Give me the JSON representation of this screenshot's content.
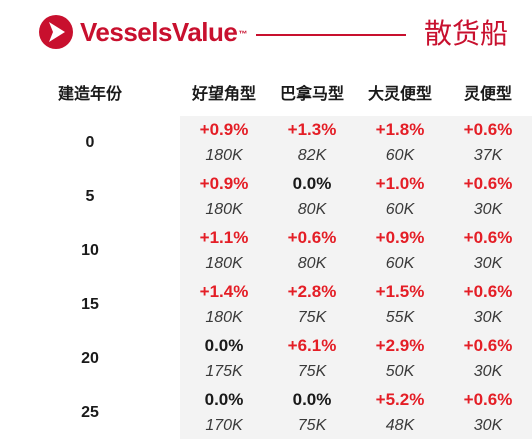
{
  "header": {
    "brand": "VesselsValue",
    "trademark": "™",
    "title": "散货船",
    "brand_color": "#c8102e",
    "logo_icon": "vesselsvalue-logo-icon"
  },
  "table": {
    "age_header": "建造年份",
    "vessel_headers": [
      "好望角型",
      "巴拿马型",
      "大灵便型",
      "灵便型"
    ],
    "positive_color": "#e41e26",
    "rows": [
      {
        "age": "0",
        "cells": [
          {
            "change": "+0.9%",
            "value": "180K"
          },
          {
            "change": "+1.3%",
            "value": "82K"
          },
          {
            "change": "+1.8%",
            "value": "60K"
          },
          {
            "change": "+0.6%",
            "value": "37K"
          }
        ]
      },
      {
        "age": "5",
        "cells": [
          {
            "change": "+0.9%",
            "value": "180K"
          },
          {
            "change": "0.0%",
            "value": "80K"
          },
          {
            "change": "+1.0%",
            "value": "60K"
          },
          {
            "change": "+0.6%",
            "value": "30K"
          }
        ]
      },
      {
        "age": "10",
        "cells": [
          {
            "change": "+1.1%",
            "value": "180K"
          },
          {
            "change": "+0.6%",
            "value": "80K"
          },
          {
            "change": "+0.9%",
            "value": "60K"
          },
          {
            "change": "+0.6%",
            "value": "30K"
          }
        ]
      },
      {
        "age": "15",
        "cells": [
          {
            "change": "+1.4%",
            "value": "180K"
          },
          {
            "change": "+2.8%",
            "value": "75K"
          },
          {
            "change": "+1.5%",
            "value": "55K"
          },
          {
            "change": "+0.6%",
            "value": "30K"
          }
        ]
      },
      {
        "age": "20",
        "cells": [
          {
            "change": "0.0%",
            "value": "175K"
          },
          {
            "change": "+6.1%",
            "value": "75K"
          },
          {
            "change": "+2.9%",
            "value": "50K"
          },
          {
            "change": "+0.6%",
            "value": "30K"
          }
        ]
      },
      {
        "age": "25",
        "cells": [
          {
            "change": "0.0%",
            "value": "170K"
          },
          {
            "change": "0.0%",
            "value": "75K"
          },
          {
            "change": "+5.2%",
            "value": "48K"
          },
          {
            "change": "+0.6%",
            "value": "30K"
          }
        ]
      }
    ]
  }
}
